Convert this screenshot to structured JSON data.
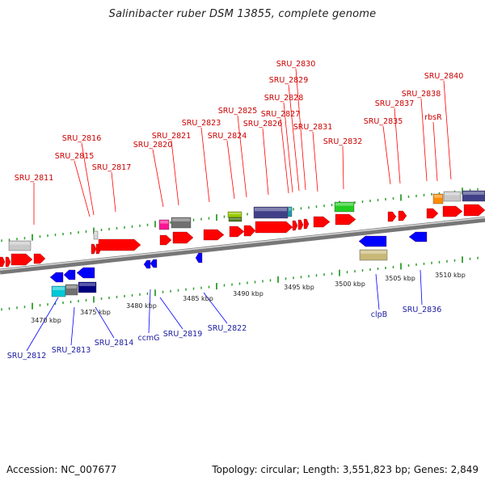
{
  "header": {
    "title": "Salinibacter ruber DSM 13855, complete genome"
  },
  "footer": {
    "accession": "Accession: NC_007677",
    "summary": "Topology: circular; Length: 3,551,823 bp; Genes: 2,849"
  },
  "colors": {
    "forward_gene": "#ff0000",
    "reverse_gene": "#0000ff",
    "forward_label": "#cc0000",
    "reverse_label": "#1a1aa0",
    "backbone": "#8a8a8a",
    "tick": "#2e9e2e"
  },
  "kbp_labels": [
    "3470 kbp",
    "3475 kbp",
    "3480 kbp",
    "3485 kbp",
    "3490 kbp",
    "3495 kbp",
    "3500 kbp",
    "3505 kbp",
    "3510 kbp"
  ],
  "top_labels": [
    "SRU_2811",
    "SRU_2815",
    "SRU_2816",
    "SRU_2817",
    "SRU_2820",
    "SRU_2821",
    "SRU_2823",
    "SRU_2824",
    "SRU_2825",
    "SRU_2826",
    "SRU_2827",
    "SRU_2828",
    "SRU_2829",
    "SRU_2830",
    "SRU_2831",
    "SRU_2832",
    "SRU_2835",
    "SRU_2837",
    "SRU_2838",
    "rbsR",
    "SRU_2840"
  ],
  "bottom_labels": [
    "SRU_2812",
    "SRU_2813",
    "SRU_2814",
    "ccmG",
    "SRU_2819",
    "SRU_2822",
    "clpB",
    "SRU_2836"
  ]
}
